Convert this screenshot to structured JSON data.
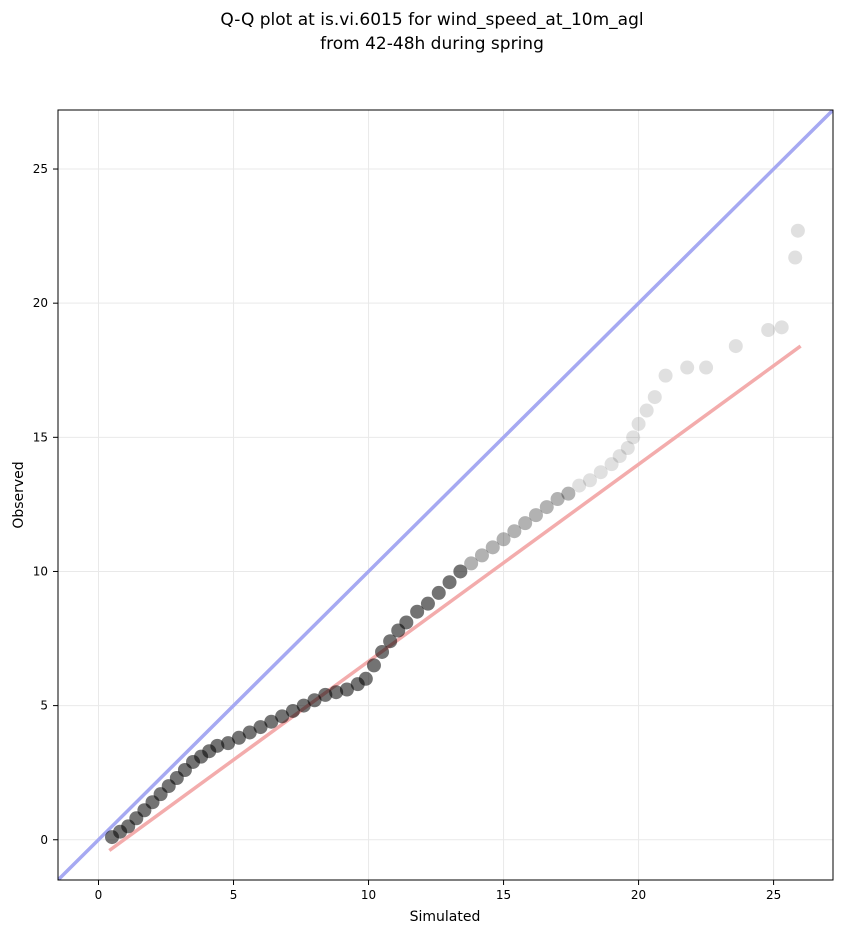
{
  "chart_data": {
    "type": "scatter",
    "title_lines": [
      "Q-Q plot at is.vi.6015 for wind_speed_at_10m_agl",
      "from 42-48h during spring"
    ],
    "xlabel": "Simulated",
    "ylabel": "Observed",
    "xlim": [
      -1.5,
      27.2
    ],
    "ylim": [
      -1.5,
      27.2
    ],
    "xticks": [
      0,
      5,
      10,
      15,
      20,
      25
    ],
    "yticks": [
      0,
      5,
      10,
      15,
      20,
      25
    ],
    "grid": true,
    "colors": {
      "identity_line": "#a6a9f2",
      "fit_line": "#f2a8a8",
      "points": "#000000"
    },
    "identity_line": {
      "x": [
        -1.5,
        27.2
      ],
      "y": [
        -1.5,
        27.2
      ]
    },
    "fit_line": {
      "x": [
        0.4,
        26.0
      ],
      "y": [
        -0.4,
        18.4
      ]
    },
    "quantile_points": {
      "x": [
        0.5,
        0.8,
        1.1,
        1.4,
        1.7,
        2.0,
        2.3,
        2.6,
        2.9,
        3.2,
        3.5,
        3.8,
        4.1,
        4.4,
        4.8,
        5.2,
        5.6,
        6.0,
        6.4,
        6.8,
        7.2,
        7.6,
        8.0,
        8.4,
        8.8,
        9.2,
        9.6,
        9.9,
        10.2,
        10.5,
        10.8,
        11.1,
        11.4,
        11.8,
        12.2,
        12.6,
        13.0,
        13.4,
        13.8,
        14.2,
        14.6,
        15.0,
        15.4,
        15.8,
        16.2,
        16.6,
        17.0,
        17.4,
        17.8,
        18.2,
        18.6,
        19.0,
        19.3,
        19.6,
        19.8,
        20.0,
        20.3,
        20.6,
        21.0,
        21.8,
        22.5,
        23.6,
        24.8,
        25.3,
        25.8,
        25.9
      ],
      "y": [
        0.1,
        0.3,
        0.5,
        0.8,
        1.1,
        1.4,
        1.7,
        2.0,
        2.3,
        2.6,
        2.9,
        3.1,
        3.3,
        3.5,
        3.6,
        3.8,
        4.0,
        4.2,
        4.4,
        4.6,
        4.8,
        5.0,
        5.2,
        5.4,
        5.5,
        5.6,
        5.8,
        6.0,
        6.5,
        7.0,
        7.4,
        7.8,
        8.1,
        8.5,
        8.8,
        9.2,
        9.6,
        10.0,
        10.3,
        10.6,
        10.9,
        11.2,
        11.5,
        11.8,
        12.1,
        12.4,
        12.7,
        12.9,
        13.2,
        13.4,
        13.7,
        14.0,
        14.3,
        14.6,
        15.0,
        15.5,
        16.0,
        16.5,
        17.3,
        17.6,
        17.6,
        18.4,
        19.0,
        19.1,
        21.7,
        22.7
      ]
    }
  }
}
